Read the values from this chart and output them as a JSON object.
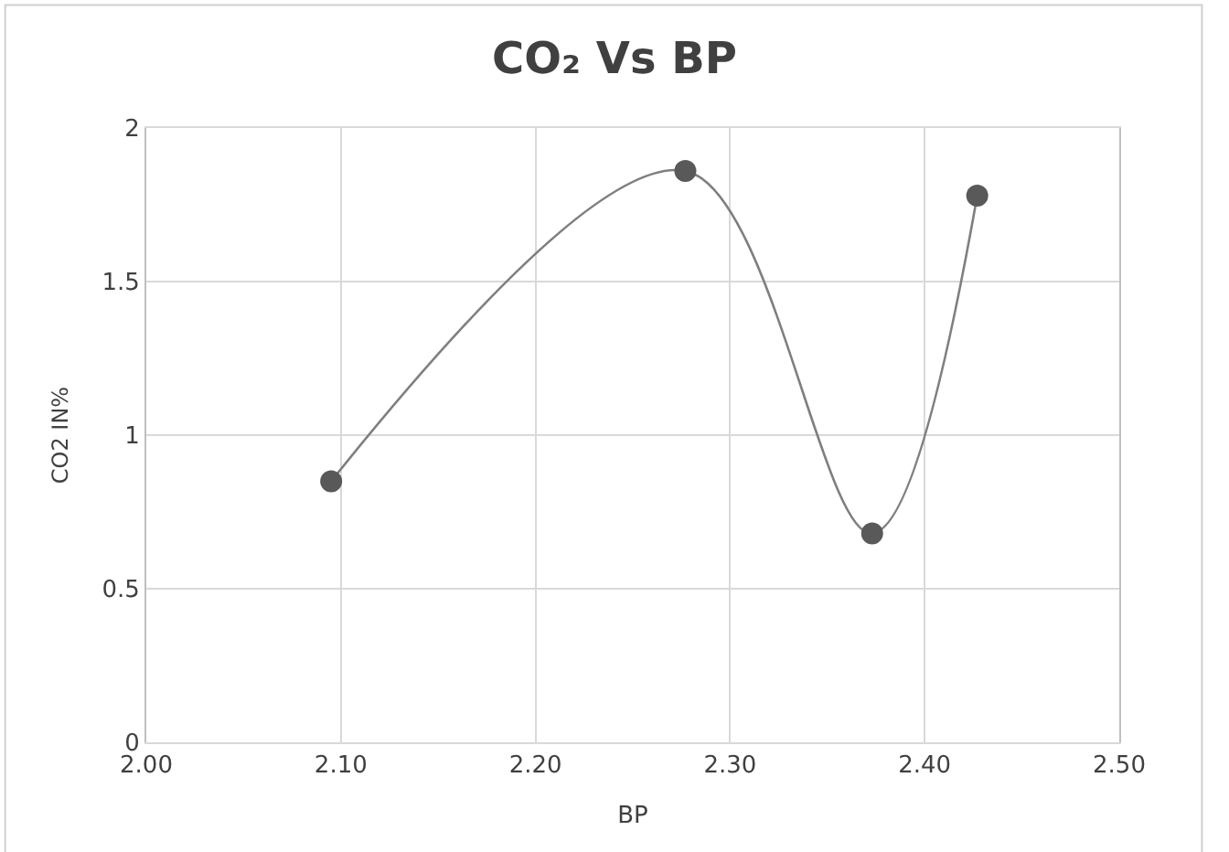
{
  "chart_data": {
    "type": "line",
    "title": "CO₂ Vs BP",
    "xlabel": "BP",
    "ylabel": "CO2 IN%",
    "x": [
      2.095,
      2.277,
      2.373,
      2.427
    ],
    "series": [
      {
        "color": "#595959",
        "values": [
          0.85,
          1.86,
          0.68,
          1.78
        ]
      }
    ],
    "xlim": [
      2.0,
      2.5
    ],
    "xticks": [
      {
        "value": 2.0,
        "label": "2.00"
      },
      {
        "value": 2.1,
        "label": "2.10"
      },
      {
        "value": 2.2,
        "label": "2.20"
      },
      {
        "value": 2.3,
        "label": "2.30"
      },
      {
        "value": 2.4,
        "label": "2.40"
      },
      {
        "value": 2.5,
        "label": "2.50"
      }
    ],
    "ylim": [
      0,
      2
    ],
    "yticks": [
      0,
      0.5,
      1,
      1.5,
      2
    ],
    "grid": true,
    "marker": "circle",
    "line_style": "solid",
    "legend": false
  }
}
